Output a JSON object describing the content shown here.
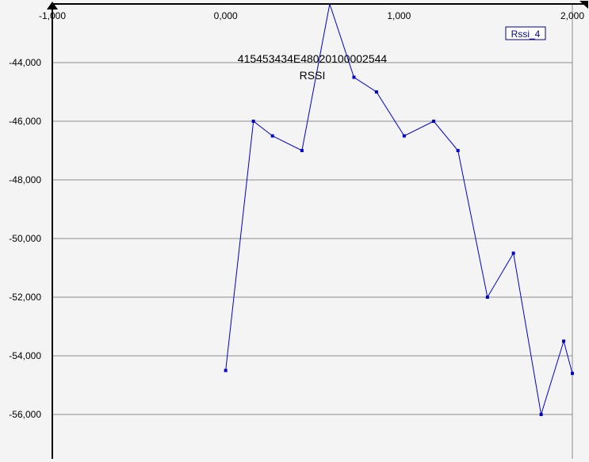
{
  "chart_data": {
    "type": "line",
    "title": "415453434E48020100002544",
    "subtitle": "RSSI",
    "xlim": [
      -1.0,
      2.0
    ],
    "ylim": [
      -57.5,
      -42.0
    ],
    "x_ticks": [
      -1.0,
      0.0,
      1.0,
      2.0
    ],
    "x_tick_labels": [
      "-1,000",
      "0,000",
      "1,000",
      "2,000"
    ],
    "y_ticks": [
      -44,
      -46,
      -48,
      -50,
      -52,
      -54,
      -56
    ],
    "y_tick_labels": [
      "-44,000",
      "-46,000",
      "-48,000",
      "-50,000",
      "-52,000",
      "-54,000",
      "-56,000"
    ],
    "grid": true,
    "legend_position": "top-right",
    "colors": {
      "series": "#0000cc",
      "grid": "#8c8c8c",
      "background": "#f4f4f4",
      "legend_border": "#00008b"
    },
    "series": [
      {
        "name": "Rssi_4",
        "x": [
          0.0,
          0.16,
          0.27,
          0.44,
          0.6,
          0.74,
          0.87,
          1.03,
          1.2,
          1.34,
          1.51,
          1.66,
          1.82,
          1.95,
          2.0
        ],
        "y": [
          -54.5,
          -46.0,
          -46.5,
          -47.0,
          -42.0,
          -44.5,
          -45.0,
          -46.5,
          -46.0,
          -47.0,
          -52.0,
          -50.5,
          -56.0,
          -53.5,
          -54.6
        ]
      }
    ]
  }
}
